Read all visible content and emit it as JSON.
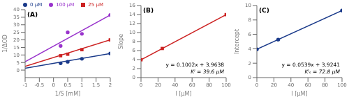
{
  "chart_data": [
    {
      "type": "line",
      "title": "(A)",
      "x_label": "1/S [mM]",
      "y_label": "1/ΔOD",
      "xlim": [
        -1,
        2
      ],
      "ylim": [
        -5,
        40
      ],
      "xticks": [
        -1,
        -0.5,
        0,
        0.5,
        1,
        1.5,
        2
      ],
      "yticks": [
        0,
        5,
        10,
        15,
        20,
        25,
        30,
        35,
        40
      ],
      "grid": false,
      "legend": "top right",
      "series": [
        {
          "name": "0 μM",
          "type": "scatter",
          "color": "#1a3a8a",
          "marker": "circle",
          "x": [
            0.25,
            0.5,
            1.0,
            2.0
          ],
          "values": [
            4.5,
            5.5,
            7.5,
            11.0
          ]
        },
        {
          "type": "line",
          "color": "#1a3a8a",
          "x": [
            -1,
            2
          ],
          "values": [
            1.2,
            11.0
          ]
        },
        {
          "name": "25 μM",
          "type": "scatter",
          "color": "#cc2222",
          "marker": "square",
          "x": [
            0.25,
            0.5,
            1.0,
            2.0
          ],
          "values": [
            9.5,
            10.5,
            13.5,
            20.0
          ]
        },
        {
          "type": "line",
          "color": "#cc2222",
          "x": [
            -1,
            2
          ],
          "values": [
            2.5,
            20.0
          ]
        },
        {
          "name": "100 μM",
          "type": "scatter",
          "color": "#9933cc",
          "marker": "circle",
          "x": [
            0.25,
            0.5,
            1.0,
            2.0
          ],
          "values": [
            16.0,
            25.0,
            24.0,
            36.5
          ]
        },
        {
          "type": "line",
          "color": "#9933cc",
          "x": [
            -1,
            2
          ],
          "values": [
            5.5,
            36.5
          ]
        }
      ]
    },
    {
      "type": "line",
      "title": "(B)",
      "x_label": "I [μM]",
      "y_label": "Slope",
      "xlim": [
        0,
        100
      ],
      "ylim": [
        0,
        16
      ],
      "xticks": [
        0,
        20,
        40,
        60,
        80,
        100
      ],
      "yticks": [
        0,
        2,
        4,
        6,
        8,
        10,
        12,
        14,
        16
      ],
      "grid": false,
      "annotations": [
        "y = 0.1002x + 3.9638",
        "Kᴵ = 39.6 μM"
      ],
      "series": [
        {
          "type": "line",
          "color": "#cc2222",
          "x": [
            0,
            100
          ],
          "values": [
            3.9638,
            13.9838
          ]
        },
        {
          "type": "scatter",
          "color": "#cc2222",
          "marker": "square",
          "x": [
            0,
            25,
            100
          ],
          "values": [
            3.9638,
            6.4688,
            13.9838
          ]
        }
      ]
    },
    {
      "type": "line",
      "title": "(C)",
      "x_label": "I [μM]",
      "y_label": "Intercept",
      "xlim": [
        0,
        100
      ],
      "ylim": [
        0,
        10
      ],
      "xticks": [
        0,
        20,
        40,
        60,
        80,
        100
      ],
      "yticks": [
        0,
        2,
        4,
        6,
        8,
        10
      ],
      "grid": false,
      "annotations": [
        "y = 0.0539x + 3.9241",
        "Kᴵₛ = 72.8 μM"
      ],
      "series": [
        {
          "type": "line",
          "color": "#1a3a8a",
          "x": [
            0,
            100
          ],
          "values": [
            3.9241,
            9.3141
          ]
        },
        {
          "type": "scatter",
          "color": "#1a3a8a",
          "marker": "circle",
          "x": [
            0,
            25,
            100
          ],
          "values": [
            3.9241,
            5.2716,
            9.3141
          ]
        }
      ]
    }
  ]
}
